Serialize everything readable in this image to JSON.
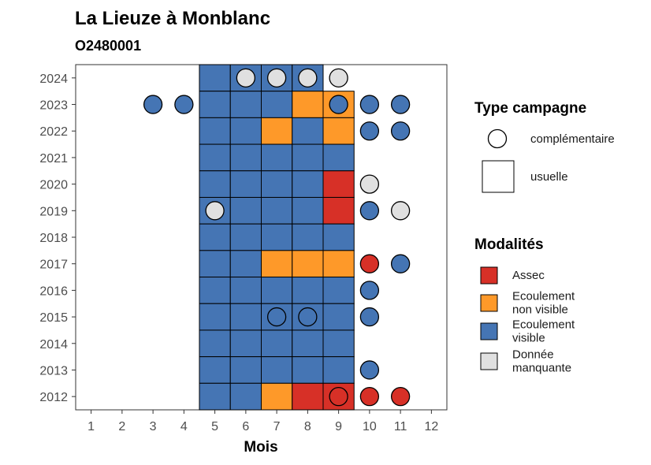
{
  "chart_data": {
    "type": "heatmap",
    "title": "La Lieuze à Monblanc",
    "subtitle": "O2480001",
    "xlabel": "Mois",
    "ylabel": "",
    "x_ticks": [
      "1",
      "2",
      "3",
      "4",
      "5",
      "6",
      "7",
      "8",
      "9",
      "10",
      "11",
      "12"
    ],
    "y_ticks": [
      "2012",
      "2013",
      "2014",
      "2015",
      "2016",
      "2017",
      "2018",
      "2019",
      "2020",
      "2021",
      "2022",
      "2023",
      "2024"
    ],
    "xlim": [
      0.5,
      12.5
    ],
    "ylim": [
      2011.5,
      2024.5
    ],
    "colors": {
      "Assec": "#d73027",
      "Ecoulement non visible": "#fe9929",
      "Ecoulement visible": "#4575b4",
      "Donnée manquante": "#e0e0e0"
    },
    "legend_type": {
      "title": "Type campagne",
      "items": [
        {
          "key": "complementaire",
          "label": "complémentaire"
        },
        {
          "key": "usuelle",
          "label": "usuelle"
        }
      ]
    },
    "legend_modalites": {
      "title": "Modalités",
      "items": [
        {
          "key": "Assec",
          "lines": [
            "Assec"
          ]
        },
        {
          "key": "Ecoulement non visible",
          "lines": [
            "Ecoulement",
            "non visible"
          ]
        },
        {
          "key": "Ecoulement visible",
          "lines": [
            "Ecoulement",
            "visible"
          ]
        },
        {
          "key": "Donnée manquante",
          "lines": [
            "Donnée",
            "manquante"
          ]
        }
      ]
    },
    "usuelle": [
      {
        "year": 2024,
        "values": {
          "5": "Ecoulement visible",
          "6": "Ecoulement visible",
          "7": "Ecoulement visible",
          "8": "Ecoulement visible"
        }
      },
      {
        "year": 2023,
        "values": {
          "5": "Ecoulement visible",
          "6": "Ecoulement visible",
          "7": "Ecoulement visible",
          "8": "Ecoulement non visible",
          "9": "Ecoulement non visible"
        }
      },
      {
        "year": 2022,
        "values": {
          "5": "Ecoulement visible",
          "6": "Ecoulement visible",
          "7": "Ecoulement non visible",
          "8": "Ecoulement visible",
          "9": "Ecoulement non visible"
        }
      },
      {
        "year": 2021,
        "values": {
          "5": "Ecoulement visible",
          "6": "Ecoulement visible",
          "7": "Ecoulement visible",
          "8": "Ecoulement visible",
          "9": "Ecoulement visible"
        }
      },
      {
        "year": 2020,
        "values": {
          "5": "Ecoulement visible",
          "6": "Ecoulement visible",
          "7": "Ecoulement visible",
          "8": "Ecoulement visible",
          "9": "Assec"
        }
      },
      {
        "year": 2019,
        "values": {
          "5": "Ecoulement visible",
          "6": "Ecoulement visible",
          "7": "Ecoulement visible",
          "8": "Ecoulement visible",
          "9": "Assec"
        }
      },
      {
        "year": 2018,
        "values": {
          "5": "Ecoulement visible",
          "6": "Ecoulement visible",
          "7": "Ecoulement visible",
          "8": "Ecoulement visible",
          "9": "Ecoulement visible"
        }
      },
      {
        "year": 2017,
        "values": {
          "5": "Ecoulement visible",
          "6": "Ecoulement visible",
          "7": "Ecoulement non visible",
          "8": "Ecoulement non visible",
          "9": "Ecoulement non visible"
        }
      },
      {
        "year": 2016,
        "values": {
          "5": "Ecoulement visible",
          "6": "Ecoulement visible",
          "7": "Ecoulement visible",
          "8": "Ecoulement visible",
          "9": "Ecoulement visible"
        }
      },
      {
        "year": 2015,
        "values": {
          "5": "Ecoulement visible",
          "6": "Ecoulement visible",
          "7": "Ecoulement visible",
          "8": "Ecoulement visible",
          "9": "Ecoulement visible"
        }
      },
      {
        "year": 2014,
        "values": {
          "5": "Ecoulement visible",
          "6": "Ecoulement visible",
          "7": "Ecoulement visible",
          "8": "Ecoulement visible",
          "9": "Ecoulement visible"
        }
      },
      {
        "year": 2013,
        "values": {
          "5": "Ecoulement visible",
          "6": "Ecoulement visible",
          "7": "Ecoulement visible",
          "8": "Ecoulement visible",
          "9": "Ecoulement visible"
        }
      },
      {
        "year": 2012,
        "values": {
          "5": "Ecoulement visible",
          "6": "Ecoulement visible",
          "7": "Ecoulement non visible",
          "8": "Assec",
          "9": "Assec"
        }
      }
    ],
    "complementaire": [
      {
        "year": 2024,
        "month": 6,
        "value": "Donnée manquante"
      },
      {
        "year": 2024,
        "month": 7,
        "value": "Donnée manquante"
      },
      {
        "year": 2024,
        "month": 8,
        "value": "Donnée manquante"
      },
      {
        "year": 2024,
        "month": 9,
        "value": "Donnée manquante"
      },
      {
        "year": 2023,
        "month": 3,
        "value": "Ecoulement visible"
      },
      {
        "year": 2023,
        "month": 4,
        "value": "Ecoulement visible"
      },
      {
        "year": 2023,
        "month": 9,
        "value": "Ecoulement visible"
      },
      {
        "year": 2023,
        "month": 10,
        "value": "Ecoulement visible"
      },
      {
        "year": 2023,
        "month": 11,
        "value": "Ecoulement visible"
      },
      {
        "year": 2022,
        "month": 10,
        "value": "Ecoulement visible"
      },
      {
        "year": 2022,
        "month": 11,
        "value": "Ecoulement visible"
      },
      {
        "year": 2020,
        "month": 10,
        "value": "Donnée manquante"
      },
      {
        "year": 2019,
        "month": 5,
        "value": "Donnée manquante"
      },
      {
        "year": 2019,
        "month": 10,
        "value": "Ecoulement visible"
      },
      {
        "year": 2019,
        "month": 11,
        "value": "Donnée manquante"
      },
      {
        "year": 2017,
        "month": 10,
        "value": "Assec"
      },
      {
        "year": 2017,
        "month": 11,
        "value": "Ecoulement visible"
      },
      {
        "year": 2016,
        "month": 10,
        "value": "Ecoulement visible"
      },
      {
        "year": 2015,
        "month": 7,
        "value": "Ecoulement visible"
      },
      {
        "year": 2015,
        "month": 8,
        "value": "Ecoulement visible"
      },
      {
        "year": 2015,
        "month": 10,
        "value": "Ecoulement visible"
      },
      {
        "year": 2013,
        "month": 10,
        "value": "Ecoulement visible"
      },
      {
        "year": 2012,
        "month": 9,
        "value": "Assec"
      },
      {
        "year": 2012,
        "month": 10,
        "value": "Assec"
      },
      {
        "year": 2012,
        "month": 11,
        "value": "Assec"
      }
    ]
  }
}
